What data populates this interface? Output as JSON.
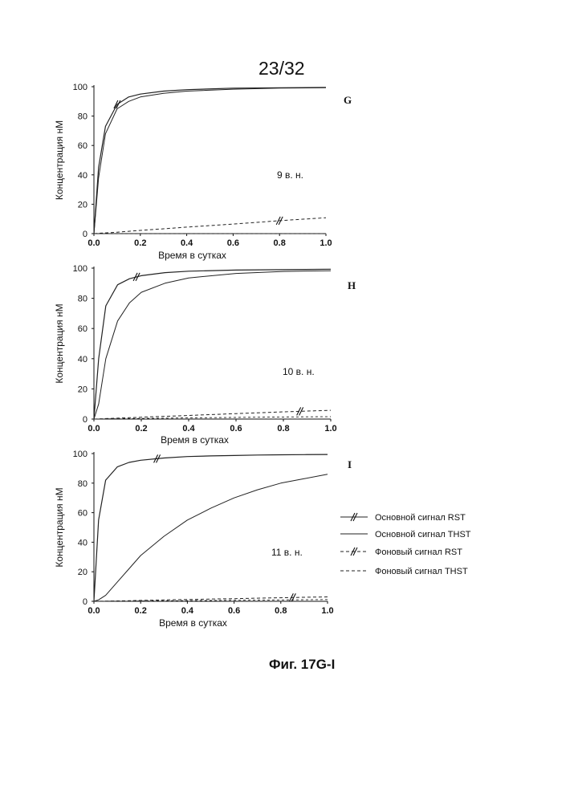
{
  "page_number": "23/32",
  "figure_caption": "Фиг. 17G-I",
  "legend": [
    {
      "label": "Основной сигнал RST",
      "style": "solid-hatched"
    },
    {
      "label": "Основной сигнал THST",
      "style": "solid"
    },
    {
      "label": "Фоновый сигнал RST",
      "style": "dashed-hatched"
    },
    {
      "label": "Фоновый сигнал THST",
      "style": "dashed"
    }
  ],
  "chart_data": [
    {
      "type": "line",
      "panel_letter": "G",
      "annotation": "9 в. н.",
      "xlabel": "Время в сутках",
      "ylabel": "Концентрация нМ",
      "xlim": [
        0,
        1.0
      ],
      "ylim": [
        0,
        100
      ],
      "xticks": [
        "0.0",
        "0.2",
        "0.4",
        "0.6",
        "0.8",
        "1.0"
      ],
      "yticks": [
        "0",
        "20",
        "40",
        "60",
        "80",
        "100"
      ],
      "x": [
        0,
        0.02,
        0.05,
        0.1,
        0.15,
        0.2,
        0.3,
        0.4,
        0.6,
        0.8,
        1.0
      ],
      "series": [
        {
          "name": "Основной сигнал RST",
          "values": [
            0,
            45,
            73,
            88,
            93,
            95,
            97,
            98,
            99,
            99.3,
            99.5
          ]
        },
        {
          "name": "Основной сигнал THST",
          "values": [
            0,
            38,
            68,
            85,
            90,
            93,
            95.5,
            97,
            98.3,
            99,
            99.3
          ]
        },
        {
          "name": "Фоновый сигнал RST",
          "values": [
            0,
            0.2,
            0.5,
            1,
            1.6,
            2.2,
            3.3,
            4.4,
            6.5,
            8.8,
            10.8
          ]
        },
        {
          "name": "Фоновый сигнал THST",
          "values": [
            0,
            0,
            0,
            0,
            0,
            0,
            0,
            0,
            0,
            0,
            0
          ]
        }
      ]
    },
    {
      "type": "line",
      "panel_letter": "H",
      "annotation": "10 в. н.",
      "xlabel": "Время в сутках",
      "ylabel": "Концентрация нМ",
      "xlim": [
        0,
        1.0
      ],
      "ylim": [
        0,
        100
      ],
      "xticks": [
        "0.0",
        "0.2",
        "0.4",
        "0.6",
        "0.8",
        "1.0"
      ],
      "yticks": [
        "0",
        "20",
        "40",
        "60",
        "80",
        "100"
      ],
      "x": [
        0,
        0.02,
        0.05,
        0.1,
        0.15,
        0.2,
        0.3,
        0.4,
        0.6,
        0.8,
        1.0
      ],
      "series": [
        {
          "name": "Основной сигнал RST",
          "values": [
            0,
            40,
            75,
            89,
            93,
            95,
            97,
            98,
            98.7,
            99,
            99.3
          ]
        },
        {
          "name": "Основной сигнал THST",
          "values": [
            0,
            10,
            40,
            65,
            77,
            84,
            90,
            93.5,
            96.5,
            97.8,
            98.3
          ]
        },
        {
          "name": "Фоновый сигнал RST",
          "values": [
            0,
            0.1,
            0.3,
            0.6,
            0.9,
            1.2,
            1.8,
            2.4,
            3.6,
            4.8,
            5.8
          ]
        },
        {
          "name": "Фоновый сигнал THST",
          "values": [
            0,
            0.05,
            0.1,
            0.2,
            0.3,
            0.4,
            0.6,
            0.8,
            1.1,
            1.4,
            1.6
          ]
        }
      ]
    },
    {
      "type": "line",
      "panel_letter": "I",
      "annotation": "11 в. н.",
      "xlabel": "Время в сутках",
      "ylabel": "Концентрация нМ",
      "xlim": [
        0,
        1.0
      ],
      "ylim": [
        0,
        100
      ],
      "xticks": [
        "0.0",
        "0.2",
        "0.4",
        "0.6",
        "0.8",
        "1.0"
      ],
      "yticks": [
        "0",
        "20",
        "40",
        "60",
        "80",
        "100"
      ],
      "x": [
        0,
        0.02,
        0.05,
        0.1,
        0.15,
        0.2,
        0.3,
        0.4,
        0.5,
        0.6,
        0.7,
        0.8,
        0.9,
        1.0
      ],
      "series": [
        {
          "name": "Основной сигнал RST",
          "values": [
            0,
            55,
            82,
            91,
            94,
            95.5,
            97,
            98,
            98.4,
            98.7,
            99,
            99.2,
            99.3,
            99.4
          ]
        },
        {
          "name": "Основной сигнал THST",
          "values": [
            0,
            1,
            4,
            13,
            22,
            31,
            44,
            55,
            63,
            70,
            75.5,
            80,
            83,
            86
          ]
        },
        {
          "name": "Фоновый сигнал RST",
          "values": [
            0,
            0.05,
            0.1,
            0.25,
            0.4,
            0.6,
            0.9,
            1.2,
            1.5,
            1.8,
            2.1,
            2.4,
            2.7,
            3
          ]
        },
        {
          "name": "Фоновый сигнал THST",
          "values": [
            0,
            0.02,
            0.05,
            0.1,
            0.15,
            0.2,
            0.3,
            0.45,
            0.55,
            0.7,
            0.8,
            0.95,
            1.05,
            1.2
          ]
        }
      ]
    }
  ]
}
